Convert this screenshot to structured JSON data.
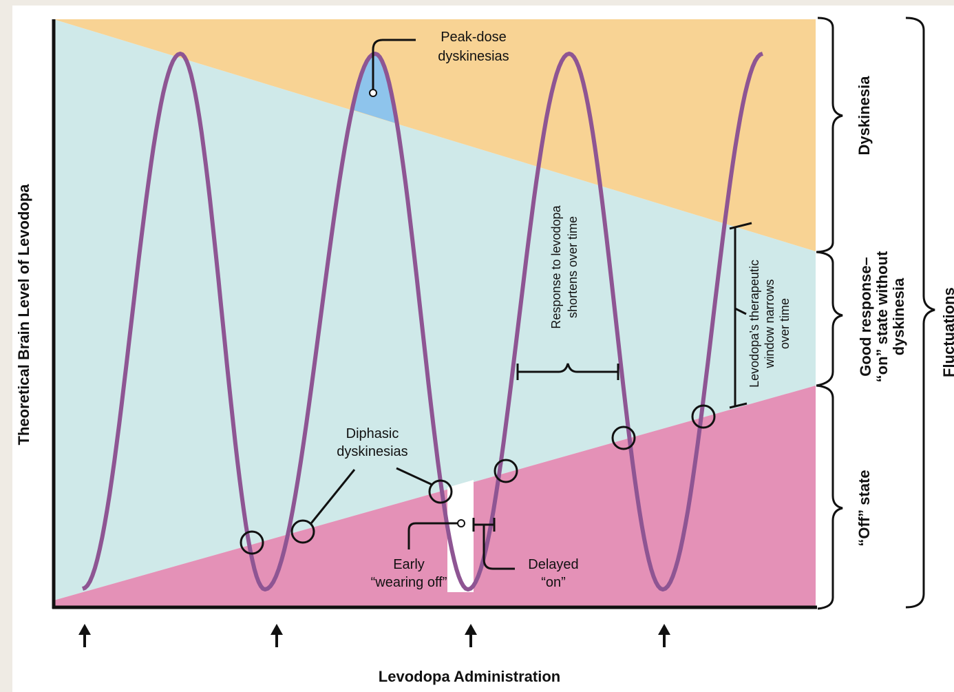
{
  "colors": {
    "page_bg": "#efebe4",
    "plot_bg": "#ffffff",
    "dyskinesia_zone": "#f8d394",
    "good_zone": "#cfe9e9",
    "off_zone": "#e491b7",
    "peak_fill": "#8ec4ec",
    "curve": "#8e5593",
    "ink": "#111111"
  },
  "axes": {
    "y_label": "Theoretical Brain Level of Levodopa",
    "x_label": "Levodopa Administration"
  },
  "zones": {
    "dyskinesia": "Dyskinesia",
    "good_line1": "Good response–",
    "good_line2": "“on” state without",
    "good_line3": "dyskinesia",
    "off": "“Off” state",
    "fluctuations": "Fluctuations"
  },
  "annotations": {
    "peak_line1": "Peak-dose",
    "peak_line2": "dyskinesias",
    "diphasic_line1": "Diphasic",
    "diphasic_line2": "dyskinesias",
    "early_line1": "Early",
    "early_line2": "“wearing off”",
    "delayed_line1": "Delayed",
    "delayed_line2": "“on”",
    "response_line1": "Response to levodopa",
    "response_line2": "shortens over time",
    "window_line1": "Levodopa’s therapeutic",
    "window_line2": "window narrows",
    "window_line3": "over time"
  },
  "dose_arrows": [
    "up-arrow",
    "up-arrow",
    "up-arrow",
    "up-arrow"
  ]
}
